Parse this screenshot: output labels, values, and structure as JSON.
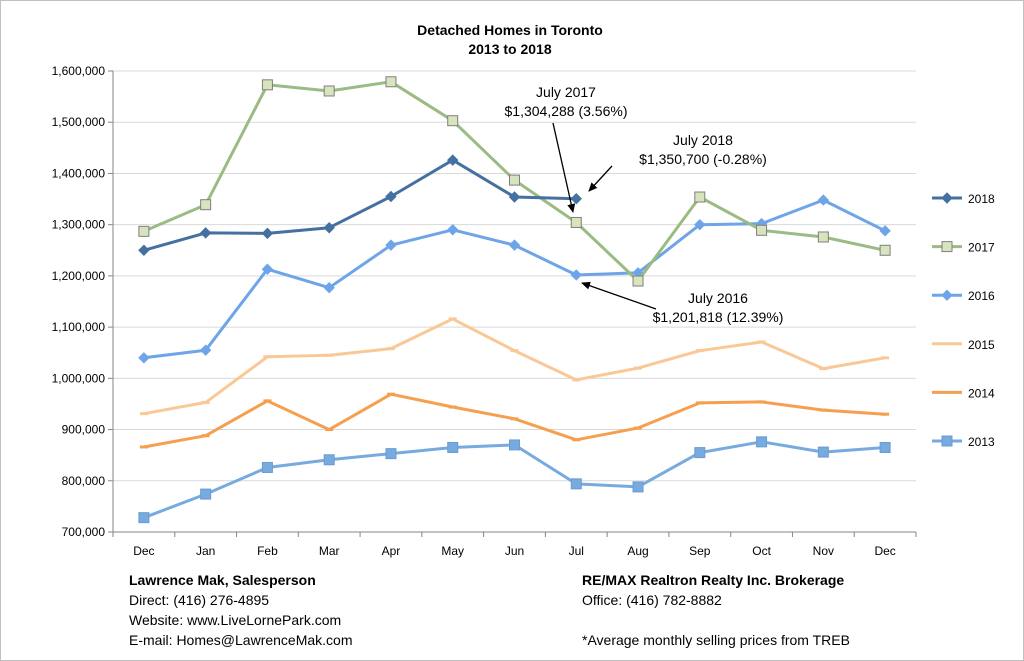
{
  "chart_data": {
    "type": "line",
    "title": "Detached Homes in Toronto",
    "subtitle": "2013 to 2018",
    "xlabel": "",
    "ylabel": "",
    "ylim": [
      700000,
      1600000
    ],
    "yticks": [
      "1,600,000",
      "1,500,000",
      "1,400,000",
      "1,300,000",
      "1,200,000",
      "1,100,000",
      "1,000,000",
      "900,000",
      "800,000",
      "700,000"
    ],
    "ytick_values": [
      1600000,
      1500000,
      1400000,
      1300000,
      1200000,
      1100000,
      1000000,
      900000,
      800000,
      700000
    ],
    "categories": [
      "Dec",
      "Jan",
      "Feb",
      "Mar",
      "Apr",
      "May",
      "Jun",
      "Jul",
      "Aug",
      "Sep",
      "Oct",
      "Nov",
      "Dec"
    ],
    "grid": true,
    "legend_position": "right",
    "series": [
      {
        "name": "2018",
        "color": "#44719f",
        "marker": "diamond",
        "values": [
          1250000,
          1284000,
          1283000,
          1294000,
          1355000,
          1426000,
          1354000,
          1350700,
          null,
          null,
          null,
          null,
          null
        ]
      },
      {
        "name": "2017",
        "color": "#9bbb83",
        "marker": "square-open",
        "values": [
          1287000,
          1339000,
          1573000,
          1561000,
          1579000,
          1503000,
          1387000,
          1304288,
          1190000,
          1354000,
          1289000,
          1276000,
          1250000
        ]
      },
      {
        "name": "2016",
        "color": "#6ea4e8",
        "marker": "diamond",
        "values": [
          1040000,
          1055000,
          1213000,
          1177000,
          1260000,
          1290000,
          1260000,
          1201818,
          1206000,
          1300000,
          1302000,
          1348000,
          1288000
        ]
      },
      {
        "name": "2015",
        "color": "#fac896",
        "marker": "dash",
        "values": [
          931000,
          953000,
          1042000,
          1045000,
          1058000,
          1116000,
          1054000,
          997000,
          1020000,
          1054000,
          1071000,
          1019000,
          1040000
        ]
      },
      {
        "name": "2014",
        "color": "#f59f4f",
        "marker": "dash",
        "values": [
          866000,
          888000,
          956000,
          900000,
          969000,
          944000,
          921000,
          880000,
          903000,
          952000,
          954000,
          938000,
          930000
        ]
      },
      {
        "name": "2013",
        "color": "#77aadf",
        "marker": "square",
        "values": [
          728000,
          774000,
          826000,
          841000,
          853000,
          865000,
          870000,
          794000,
          788000,
          855000,
          876000,
          856000,
          865000
        ]
      }
    ],
    "annotations": [
      {
        "lines": [
          "July 2017",
          "$1,304,288 (3.56%)"
        ]
      },
      {
        "lines": [
          "July 2018",
          "$1,350,700 (-0.28%)"
        ]
      },
      {
        "lines": [
          "July 2016",
          "$1,201,818 (12.39%)"
        ]
      }
    ]
  },
  "footer": {
    "agent_name": "Lawrence Mak, Salesperson",
    "direct": "Direct:  (416) 276-4895",
    "website": "Website:  www.LiveLornePark.com",
    "email": "E-mail:  Homes@LawrenceMak.com",
    "brokerage": "RE/MAX Realtron Realty Inc. Brokerage",
    "office": "Office: (416) 782-8882",
    "note": "*Average monthly selling prices from TREB"
  }
}
